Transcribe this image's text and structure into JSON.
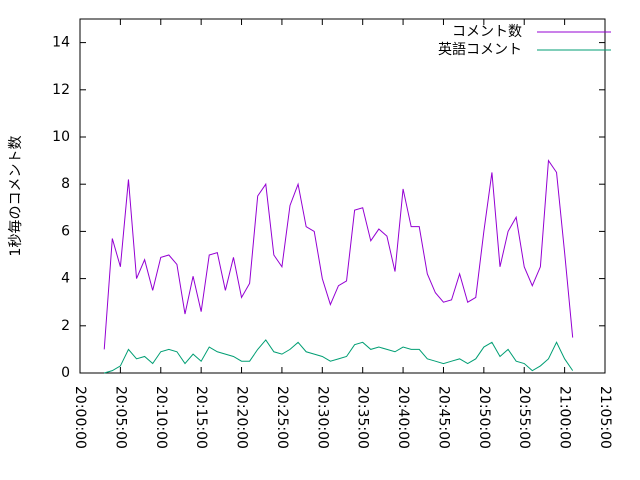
{
  "chart_data": {
    "type": "line",
    "ylabel": "1秒毎のコメント数",
    "x": [
      "20:03:00",
      "20:04:00",
      "20:05:00",
      "20:06:00",
      "20:07:00",
      "20:08:00",
      "20:09:00",
      "20:10:00",
      "20:11:00",
      "20:12:00",
      "20:13:00",
      "20:14:00",
      "20:15:00",
      "20:16:00",
      "20:17:00",
      "20:18:00",
      "20:19:00",
      "20:20:00",
      "20:21:00",
      "20:22:00",
      "20:23:00",
      "20:24:00",
      "20:25:00",
      "20:26:00",
      "20:27:00",
      "20:28:00",
      "20:29:00",
      "20:30:00",
      "20:31:00",
      "20:32:00",
      "20:33:00",
      "20:34:00",
      "20:35:00",
      "20:36:00",
      "20:37:00",
      "20:38:00",
      "20:39:00",
      "20:40:00",
      "20:41:00",
      "20:42:00",
      "20:43:00",
      "20:44:00",
      "20:45:00",
      "20:46:00",
      "20:47:00",
      "20:48:00",
      "20:49:00",
      "20:50:00",
      "20:51:00",
      "20:52:00",
      "20:53:00",
      "20:54:00",
      "20:55:00",
      "20:56:00",
      "20:57:00",
      "20:58:00",
      "20:59:00",
      "21:00:00",
      "21:01:00"
    ],
    "series": [
      {
        "name": "コメント数",
        "color": "#9400d3",
        "values": [
          1.0,
          5.7,
          4.5,
          8.2,
          4.0,
          4.8,
          3.5,
          4.9,
          5.0,
          4.6,
          2.5,
          4.1,
          2.6,
          5.0,
          5.1,
          3.5,
          4.9,
          3.2,
          3.8,
          7.5,
          8.0,
          5.0,
          4.5,
          7.1,
          8.0,
          6.2,
          6.0,
          4.0,
          2.9,
          3.7,
          3.9,
          6.9,
          7.0,
          5.6,
          6.1,
          5.8,
          4.3,
          7.8,
          6.2,
          6.2,
          4.2,
          3.4,
          3.0,
          3.1,
          4.2,
          3.0,
          3.2,
          6.0,
          8.5,
          4.5,
          6.0,
          6.6,
          4.5,
          3.7,
          4.5,
          9.0,
          8.5,
          5.1,
          1.5
        ]
      },
      {
        "name": "英語コメント",
        "color": "#009e73",
        "values": [
          0.0,
          0.1,
          0.3,
          1.0,
          0.6,
          0.7,
          0.4,
          0.9,
          1.0,
          0.9,
          0.4,
          0.8,
          0.5,
          1.1,
          0.9,
          0.8,
          0.7,
          0.5,
          0.5,
          1.0,
          1.4,
          0.9,
          0.8,
          1.0,
          1.3,
          0.9,
          0.8,
          0.7,
          0.5,
          0.6,
          0.7,
          1.2,
          1.3,
          1.0,
          1.1,
          1.0,
          0.9,
          1.1,
          1.0,
          1.0,
          0.6,
          0.5,
          0.4,
          0.5,
          0.6,
          0.4,
          0.6,
          1.1,
          1.3,
          0.7,
          1.0,
          0.5,
          0.4,
          0.1,
          0.3,
          0.6,
          1.3,
          0.6,
          0.1
        ]
      }
    ],
    "xlim": [
      "20:00:00",
      "21:05:00"
    ],
    "xticks": [
      "20:00:00",
      "20:05:00",
      "20:10:00",
      "20:15:00",
      "20:20:00",
      "20:25:00",
      "20:30:00",
      "20:35:00",
      "20:40:00",
      "20:45:00",
      "20:50:00",
      "20:55:00",
      "21:00:00",
      "21:05:00"
    ],
    "ylim": [
      0,
      15
    ],
    "yticks": [
      0,
      2,
      4,
      6,
      8,
      10,
      12,
      14
    ],
    "legend": "top-right"
  }
}
